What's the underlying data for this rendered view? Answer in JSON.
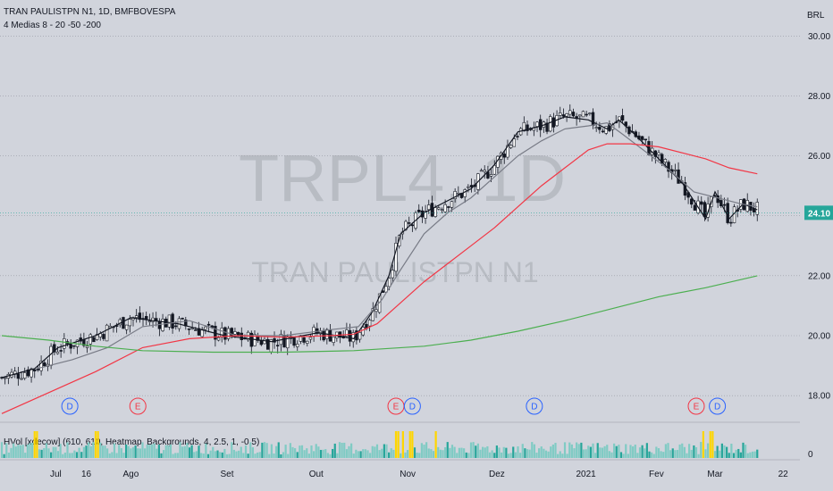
{
  "header": {
    "title": "TRAN PAULISTPN N1, 1D, BMFBOVESPA",
    "indicator": "4 Medias 8 - 20 -50 -200",
    "currency": "BRL"
  },
  "watermark": {
    "ticker": "TRPL4, 1D",
    "name": "TRAN PAULISTPN N1"
  },
  "volume_pane": {
    "label": "HVol [xdecow] (610, 610, Heatmap, Backgrounds, 4, 2.5, 1, -0.5)",
    "axis_label": "0"
  },
  "colors": {
    "background": "#d1d4dc",
    "ma8": "#131722",
    "ma20": "#787b86",
    "ma50": "#f23645",
    "ma200": "#4caf50",
    "price_badge": "#26a69a",
    "volume": "#80cbc4",
    "volume_dark": "#26a69a",
    "volume_high": "#ffd600",
    "event_dividend": "#2962ff",
    "event_earnings": "#f23645"
  },
  "chart_data": {
    "type": "candlestick",
    "symbol": "TRPL4",
    "timeframe": "1D",
    "y_axis": {
      "range": [
        17.2,
        31.2
      ],
      "ticks": [
        "18.00",
        "20.00",
        "22.00",
        "24.00",
        "26.00",
        "28.00",
        "30.00"
      ]
    },
    "x_axis": {
      "labels": [
        "Jul",
        "16",
        "Ago",
        "Set",
        "Out",
        "Nov",
        "Dez",
        "2021",
        "Fev",
        "Mar",
        "22"
      ],
      "label_days": [
        23,
        36,
        55,
        96,
        134,
        173,
        211,
        249,
        279,
        304,
        333
      ]
    },
    "last_price": "24.10",
    "moving_averages": [
      {
        "period": 8,
        "color": "#131722",
        "points": [
          [
            0,
            18.6
          ],
          [
            14,
            18.9
          ],
          [
            24,
            19.6
          ],
          [
            40,
            20.0
          ],
          [
            55,
            20.6
          ],
          [
            75,
            20.4
          ],
          [
            95,
            20.0
          ],
          [
            115,
            19.8
          ],
          [
            135,
            20.1
          ],
          [
            150,
            19.9
          ],
          [
            158,
            20.8
          ],
          [
            165,
            22.0
          ],
          [
            170,
            23.4
          ],
          [
            180,
            24.1
          ],
          [
            190,
            24.5
          ],
          [
            200,
            24.9
          ],
          [
            210,
            25.7
          ],
          [
            220,
            26.8
          ],
          [
            230,
            27.0
          ],
          [
            240,
            27.3
          ],
          [
            250,
            27.2
          ],
          [
            258,
            26.9
          ],
          [
            263,
            27.2
          ],
          [
            270,
            26.7
          ],
          [
            280,
            25.9
          ],
          [
            290,
            25.1
          ],
          [
            300,
            23.9
          ],
          [
            304,
            24.8
          ],
          [
            310,
            23.9
          ],
          [
            316,
            24.4
          ],
          [
            322,
            24.2
          ]
        ]
      },
      {
        "period": 20,
        "color": "#787b86",
        "points": [
          [
            15,
            18.9
          ],
          [
            30,
            19.2
          ],
          [
            45,
            19.6
          ],
          [
            60,
            20.3
          ],
          [
            80,
            20.5
          ],
          [
            100,
            20.0
          ],
          [
            120,
            20.0
          ],
          [
            140,
            20.2
          ],
          [
            152,
            20.3
          ],
          [
            162,
            21.2
          ],
          [
            170,
            22.2
          ],
          [
            180,
            23.4
          ],
          [
            190,
            24.1
          ],
          [
            200,
            24.6
          ],
          [
            210,
            25.3
          ],
          [
            220,
            26.0
          ],
          [
            230,
            26.5
          ],
          [
            240,
            26.9
          ],
          [
            250,
            27.0
          ],
          [
            258,
            27.1
          ],
          [
            265,
            26.7
          ],
          [
            275,
            26.1
          ],
          [
            285,
            25.5
          ],
          [
            295,
            24.8
          ],
          [
            305,
            24.6
          ],
          [
            315,
            24.4
          ],
          [
            322,
            24.3
          ]
        ]
      },
      {
        "period": 50,
        "color": "#f23645",
        "points": [
          [
            0,
            17.4
          ],
          [
            20,
            18.1
          ],
          [
            40,
            18.8
          ],
          [
            60,
            19.6
          ],
          [
            80,
            19.9
          ],
          [
            100,
            20.0
          ],
          [
            120,
            19.95
          ],
          [
            140,
            20.0
          ],
          [
            150,
            20.05
          ],
          [
            160,
            20.4
          ],
          [
            170,
            21.1
          ],
          [
            180,
            21.8
          ],
          [
            190,
            22.4
          ],
          [
            200,
            23.0
          ],
          [
            210,
            23.6
          ],
          [
            220,
            24.3
          ],
          [
            230,
            25.0
          ],
          [
            240,
            25.6
          ],
          [
            250,
            26.2
          ],
          [
            258,
            26.4
          ],
          [
            268,
            26.4
          ],
          [
            280,
            26.3
          ],
          [
            290,
            26.1
          ],
          [
            300,
            25.9
          ],
          [
            310,
            25.6
          ],
          [
            322,
            25.4
          ]
        ]
      },
      {
        "period": 200,
        "color": "#4caf50",
        "points": [
          [
            0,
            20.0
          ],
          [
            20,
            19.85
          ],
          [
            40,
            19.65
          ],
          [
            60,
            19.5
          ],
          [
            90,
            19.45
          ],
          [
            120,
            19.45
          ],
          [
            150,
            19.5
          ],
          [
            180,
            19.65
          ],
          [
            200,
            19.85
          ],
          [
            220,
            20.15
          ],
          [
            240,
            20.5
          ],
          [
            260,
            20.9
          ],
          [
            280,
            21.3
          ],
          [
            300,
            21.6
          ],
          [
            322,
            22.0
          ]
        ]
      }
    ],
    "event_markers": [
      {
        "label": "D",
        "day": 29,
        "kind": "dividend"
      },
      {
        "label": "E",
        "day": 58,
        "kind": "earnings"
      },
      {
        "label": "E",
        "day": 168,
        "kind": "earnings"
      },
      {
        "label": "D",
        "day": 175,
        "kind": "dividend"
      },
      {
        "label": "D",
        "day": 227,
        "kind": "dividend"
      },
      {
        "label": "E",
        "day": 296,
        "kind": "earnings"
      },
      {
        "label": "D",
        "day": 305,
        "kind": "dividend"
      }
    ]
  }
}
